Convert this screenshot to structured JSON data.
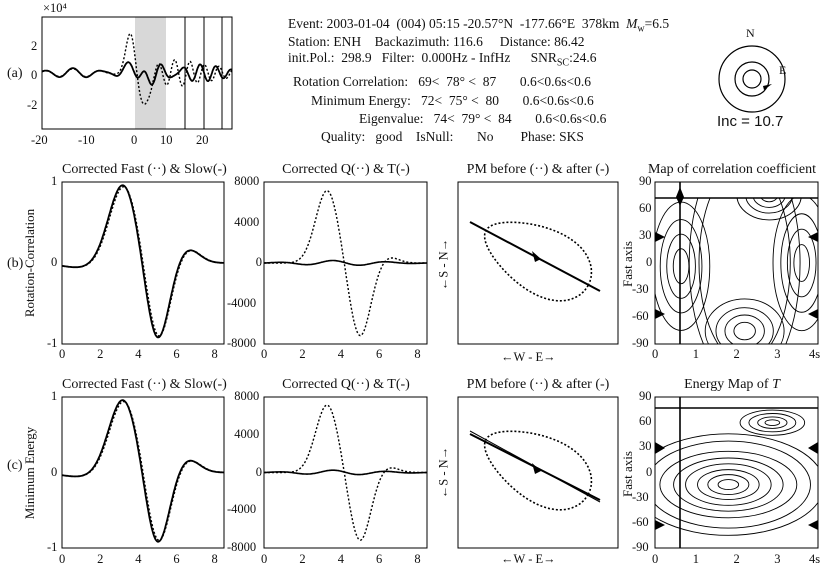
{
  "header": {
    "event_label": "Event:",
    "event_value": "2003-01-04  (004) 05:15 -20.57°N  -177.66°E  378km",
    "mw_label": "M",
    "mw_sub": "w",
    "mw_value": "=6.5",
    "station_line": "Station: ENH    Backazimuth: 116.6     Distance: 86.42",
    "initpol_line": "init.Pol.:  298.9   Filter:  0.000Hz - InfHz      SNR",
    "snr_sub": "SC",
    "snr_value": ":24.6",
    "rotation_line": "Rotation Correlation:   69<  78° <  87       0.6<0.6s<0.6",
    "minenergy_line": "Minimum Energy:   72<  75° <  80       0.6<0.6s<0.6",
    "eigen_line": "Eigenvalue:   74<  79° <  84       0.6<0.6s<0.6",
    "quality_line": "Quality:   good    IsNull:       No        Phase: SKS"
  },
  "stereo": {
    "north": "N",
    "east": "E",
    "inc": "Inc = 10.7"
  },
  "row_labels": {
    "a": "(a)",
    "b": "(b)",
    "c": "(c)"
  },
  "panel_a": {
    "scale": "×10⁴",
    "xticks": [
      "-20",
      "-10",
      "0",
      "10",
      "20"
    ],
    "yticks": [
      "2",
      "0",
      "-2"
    ]
  },
  "row_b": {
    "ylabel": "Rotation-Correlation",
    "t1": "Corrected Fast (··) & Slow(-)",
    "t2": "Corrected Q(··) & T(-)",
    "t3": "PM before (··) & after (-)",
    "t4": "Map of correlation coefficient"
  },
  "row_c": {
    "ylabel": "Minimum Energy",
    "t1": "Corrected Fast (··) & Slow(-)",
    "t2": "Corrected Q(··) & T(-)",
    "t3": "PM before (··) & after (-)",
    "t4_prefix": "Energy Map of ",
    "t4_italic": "T"
  },
  "axes": {
    "pm_y": "←S - N→",
    "pm_x": "←W - E→",
    "fast_axis": "Fast axis",
    "fast_y1": [
      "1",
      "0",
      "-1"
    ],
    "time_x": [
      "0",
      "2",
      "4",
      "6",
      "8"
    ],
    "qt_y": [
      "8000",
      "4000",
      "0",
      "-4000",
      "-8000"
    ],
    "map_y": [
      "90",
      "60",
      "30",
      "0",
      "-30",
      "-60",
      "-90"
    ],
    "map_x": [
      "0",
      "1",
      "2",
      "3",
      "4s"
    ]
  }
}
